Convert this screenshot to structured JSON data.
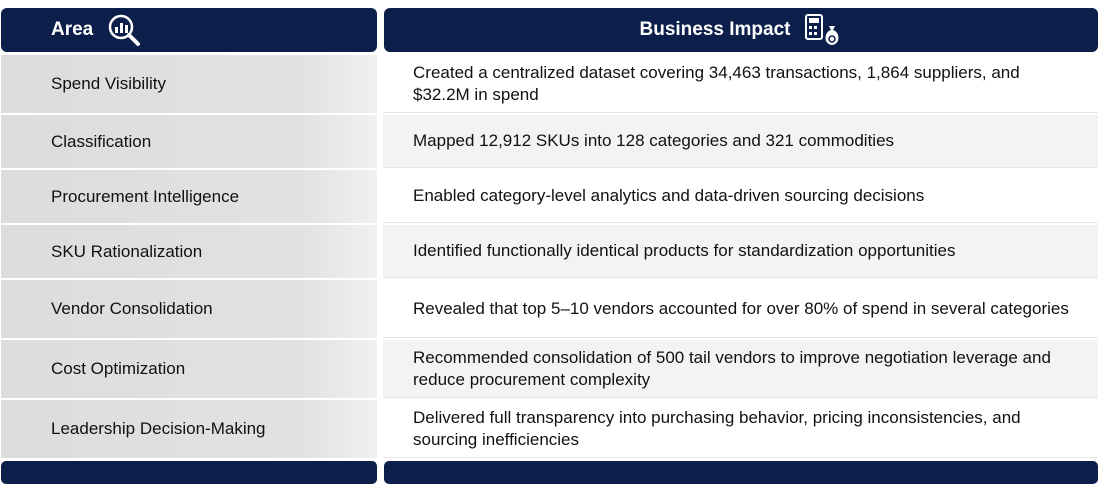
{
  "header": {
    "columns": [
      "Area",
      "Business Impact"
    ]
  },
  "table": {
    "rows": [
      [
        "Spend Visibility",
        "Created a centralized dataset covering 34,463 transactions, 1,864 suppliers, and $32.2M in spend"
      ],
      [
        "Classification",
        "Mapped 12,912 SKUs into 128 categories and 321 commodities"
      ],
      [
        "Procurement Intelligence",
        "Enabled category-level analytics and data-driven sourcing decisions"
      ],
      [
        "SKU Rationalization",
        "Identified functionally identical products for standardization opportunities"
      ],
      [
        "Vendor Consolidation",
        "Revealed that top 5–10 vendors accounted for over 80% of spend in several categories"
      ],
      [
        "Cost Optimization",
        "Recommended consolidation of 500 tail vendors to improve negotiation leverage and reduce procurement complexity"
      ],
      [
        "Leadership Decision-Making",
        "Delivered full transparency into purchasing behavior, pricing inconsistencies, and sourcing inefficiencies"
      ]
    ]
  }
}
